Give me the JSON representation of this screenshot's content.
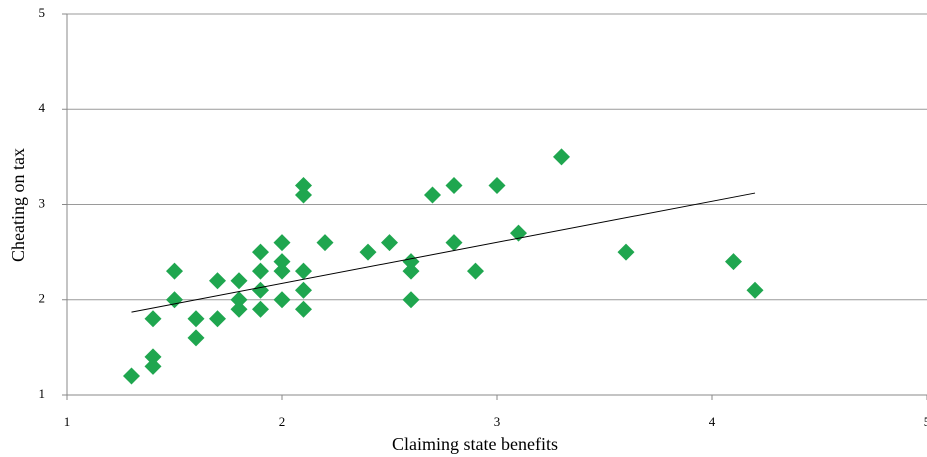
{
  "chart_data": {
    "type": "scatter",
    "x_label": "Claiming state benefits",
    "y_label": "Cheating on tax",
    "color": "#1fa64f",
    "x": [
      1.3,
      1.4,
      1.4,
      1.4,
      1.5,
      1.5,
      1.6,
      1.6,
      1.7,
      1.7,
      1.8,
      1.8,
      1.8,
      1.9,
      1.9,
      1.9,
      1.9,
      2.0,
      2.0,
      2.0,
      2.0,
      2.1,
      2.1,
      2.1,
      2.1,
      2.1,
      2.2,
      2.4,
      2.5,
      2.6,
      2.6,
      2.6,
      2.7,
      2.8,
      2.8,
      2.9,
      3.0,
      3.1,
      3.3,
      3.6,
      4.1,
      4.2
    ],
    "y": [
      1.2,
      1.3,
      1.4,
      1.8,
      2.0,
      2.3,
      1.6,
      1.8,
      1.8,
      2.2,
      2.2,
      2.0,
      1.9,
      1.9,
      2.1,
      2.3,
      2.5,
      2.0,
      2.3,
      2.4,
      2.6,
      1.9,
      2.1,
      2.3,
      3.1,
      3.2,
      2.6,
      2.5,
      2.6,
      2.0,
      2.3,
      2.4,
      3.1,
      2.6,
      3.2,
      2.3,
      3.2,
      2.7,
      3.5,
      2.5,
      2.4,
      2.1
    ],
    "trendline": {
      "x": [
        1.3,
        4.2
      ],
      "y": [
        1.87,
        3.12
      ],
      "color": "#000000"
    },
    "xlim": [
      1,
      5
    ],
    "xticks": [
      1,
      2,
      3,
      4,
      5
    ],
    "ylim": [
      1,
      5
    ],
    "yticks": [
      1,
      2,
      3,
      4,
      5
    ],
    "grid": true
  }
}
